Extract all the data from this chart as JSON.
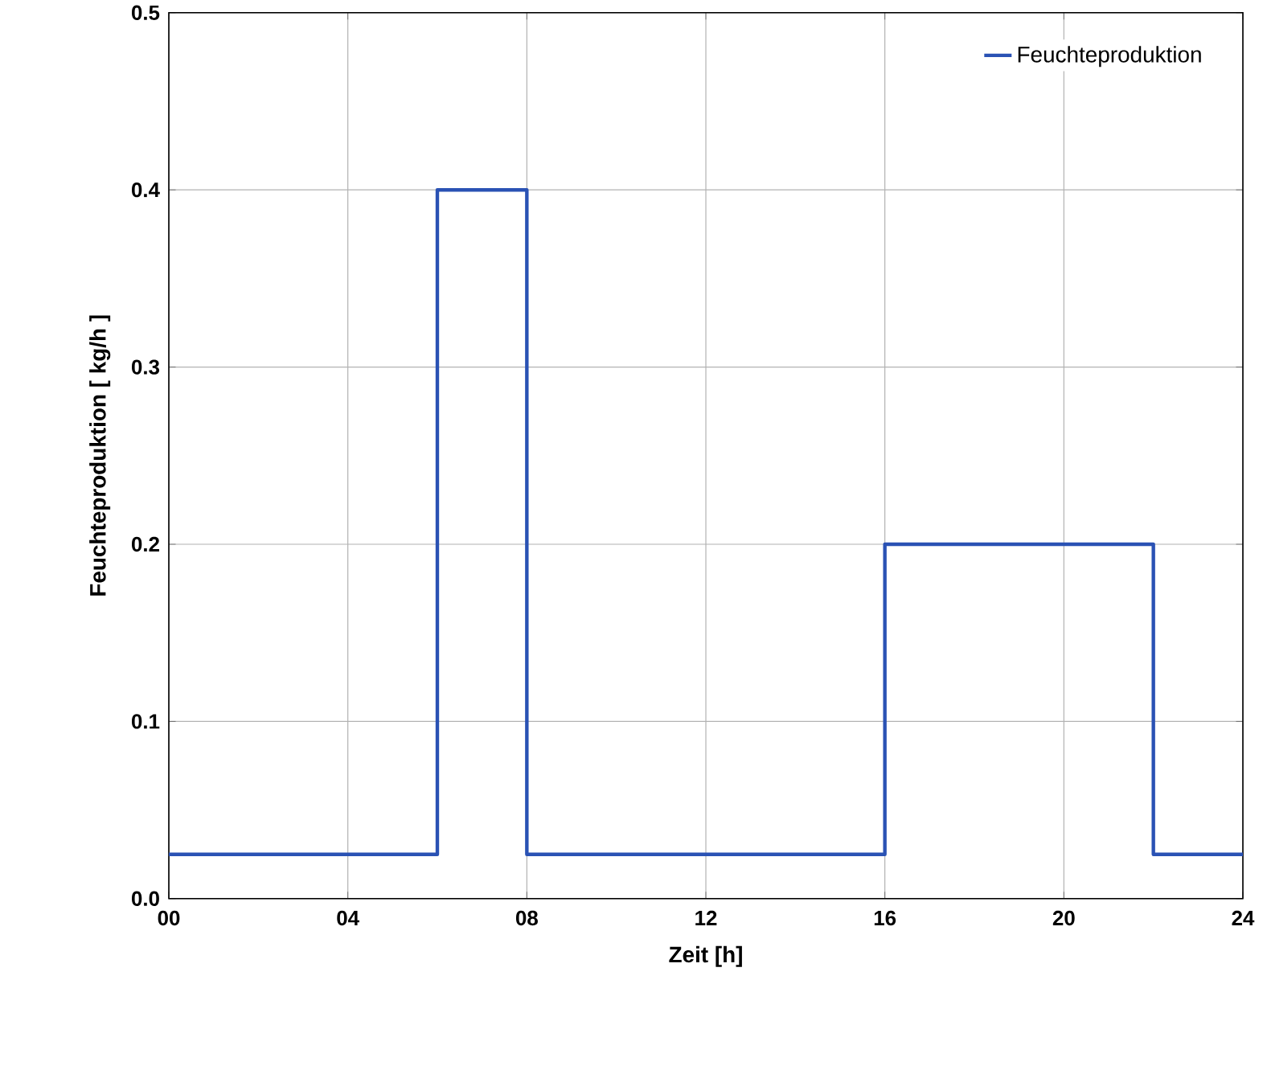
{
  "chart_data": {
    "type": "step",
    "xlabel": "Zeit [h]",
    "ylabel": "Feuchteproduktion [ kg/h ]",
    "x": [
      0,
      6,
      8,
      16,
      22,
      24
    ],
    "series": [
      {
        "name": "Feuchteproduktion",
        "color": "#2a52b4",
        "values": [
          0.025,
          0.4,
          0.025,
          0.2,
          0.025,
          0.025
        ]
      }
    ],
    "xlim": [
      0,
      24
    ],
    "xticks": [
      {
        "value": 0,
        "label": "00"
      },
      {
        "value": 4,
        "label": "04"
      },
      {
        "value": 8,
        "label": "08"
      },
      12,
      16,
      20,
      24
    ],
    "ylim": [
      0,
      0.5
    ],
    "yticks": [
      {
        "value": 0,
        "label": "0.0"
      },
      0.1,
      0.2,
      0.3,
      0.4,
      0.5
    ],
    "grid": true,
    "legend": "top right",
    "marker": "none",
    "line_style": "solid"
  }
}
